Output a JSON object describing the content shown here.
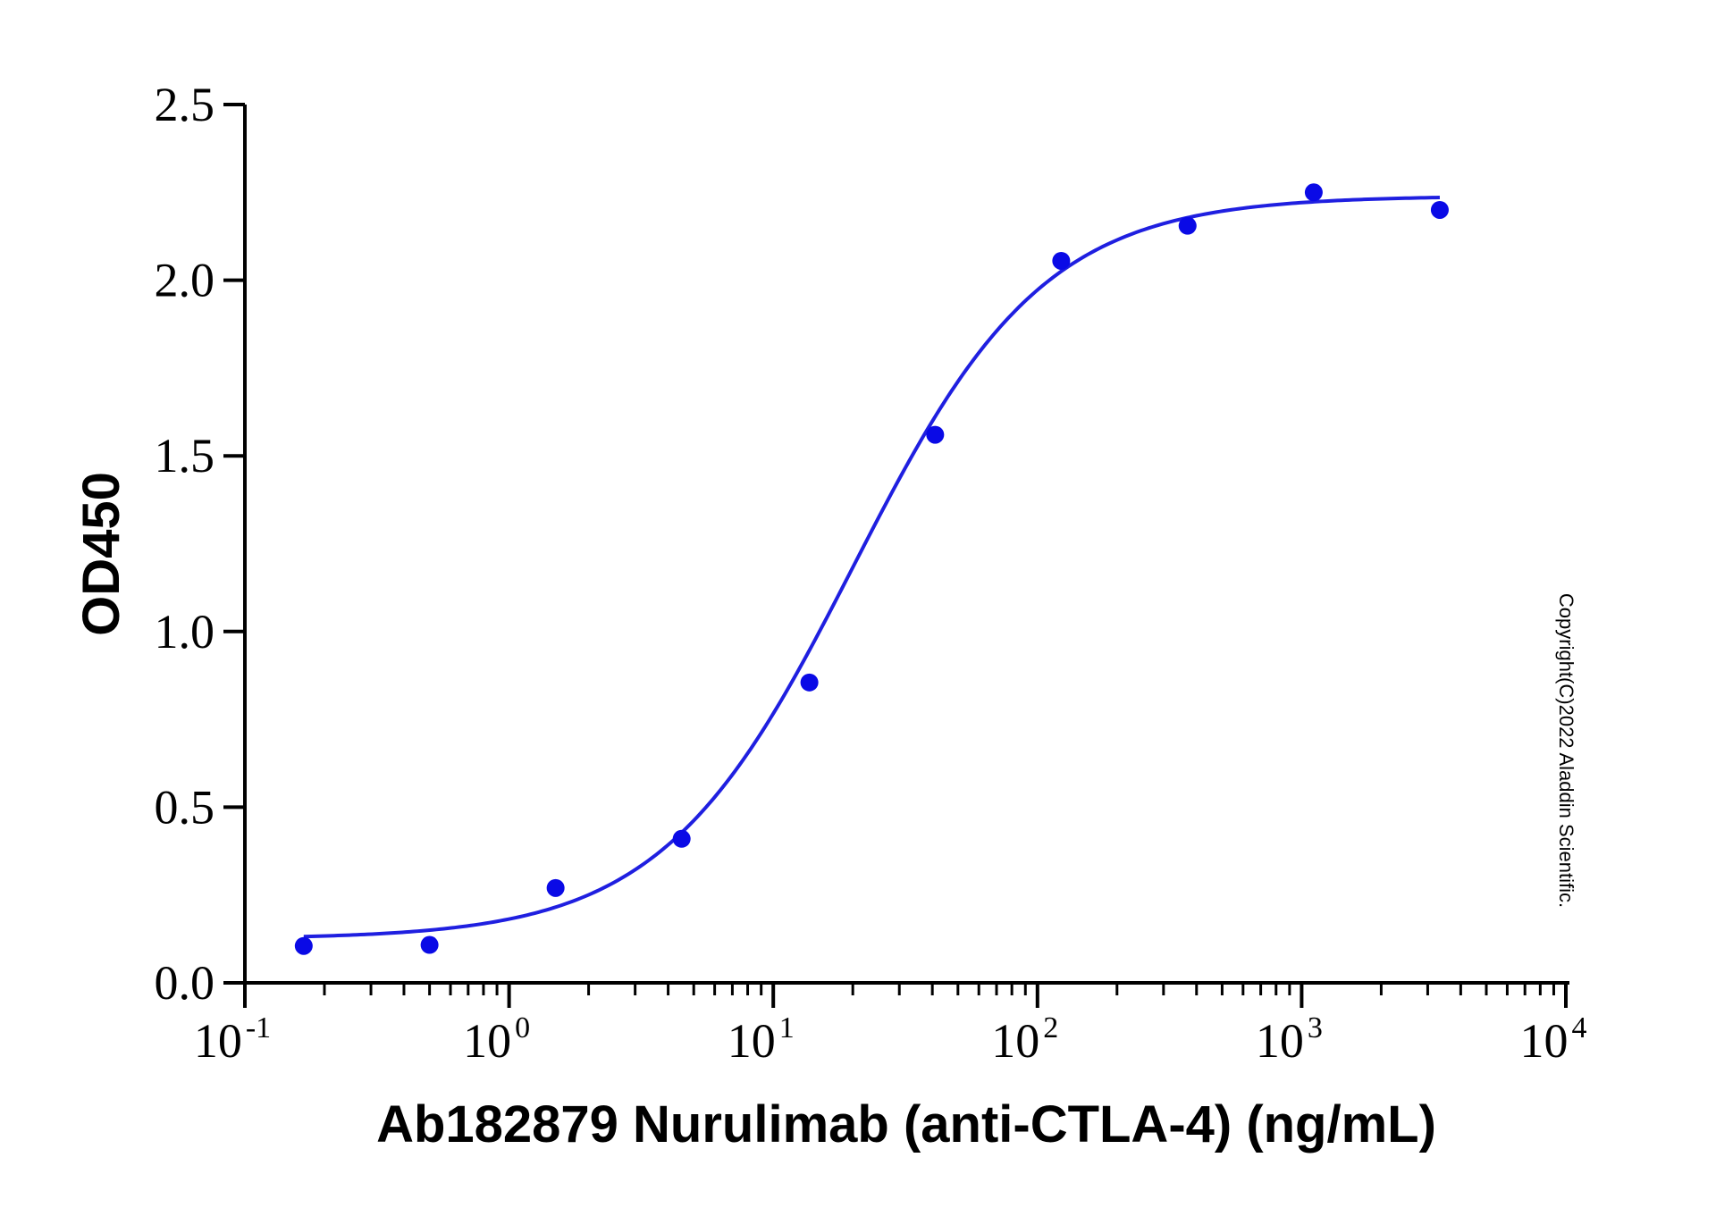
{
  "chart_data": {
    "type": "scatter",
    "xlabel": "Ab182879 Nurulimab (anti-CTLA-4) (ng/mL)",
    "ylabel": "OD450",
    "x_scale": "log",
    "xlim": [
      0.1,
      10000
    ],
    "ylim": [
      0,
      2.5
    ],
    "x_ticks": [
      {
        "base": "10",
        "exp": "-1",
        "value": 0.1
      },
      {
        "base": "10",
        "exp": "0",
        "value": 1
      },
      {
        "base": "10",
        "exp": "1",
        "value": 10
      },
      {
        "base": "10",
        "exp": "2",
        "value": 100
      },
      {
        "base": "10",
        "exp": "3",
        "value": 1000
      },
      {
        "base": "10",
        "exp": "4",
        "value": 10000
      }
    ],
    "y_ticks": [
      {
        "label": "0.0",
        "value": 0
      },
      {
        "label": "0.5",
        "value": 0.5
      },
      {
        "label": "1.0",
        "value": 1.0
      },
      {
        "label": "1.5",
        "value": 1.5
      },
      {
        "label": "2.0",
        "value": 2.0
      },
      {
        "label": "2.5",
        "value": 2.5
      }
    ],
    "grid": false,
    "color": "#1f1fe0",
    "point_color": "#0a0ae6",
    "series": [
      {
        "points": [
          {
            "x": 0.167,
            "y": 0.105
          },
          {
            "x": 0.5,
            "y": 0.108
          },
          {
            "x": 1.5,
            "y": 0.27
          },
          {
            "x": 4.5,
            "y": 0.41
          },
          {
            "x": 13.7,
            "y": 0.855
          },
          {
            "x": 41,
            "y": 1.56
          },
          {
            "x": 123,
            "y": 2.055
          },
          {
            "x": 370,
            "y": 2.155
          },
          {
            "x": 1111,
            "y": 2.25
          },
          {
            "x": 3333,
            "y": 2.2
          }
        ],
        "fit": {
          "model": "4PL",
          "bottom": 0.125,
          "top": 2.24,
          "ec50": 20,
          "hill": 1.2,
          "x_range": [
            0.167,
            3333
          ]
        }
      }
    ]
  },
  "watermark": "Copyright(C)2022 Aladdin Scientific."
}
